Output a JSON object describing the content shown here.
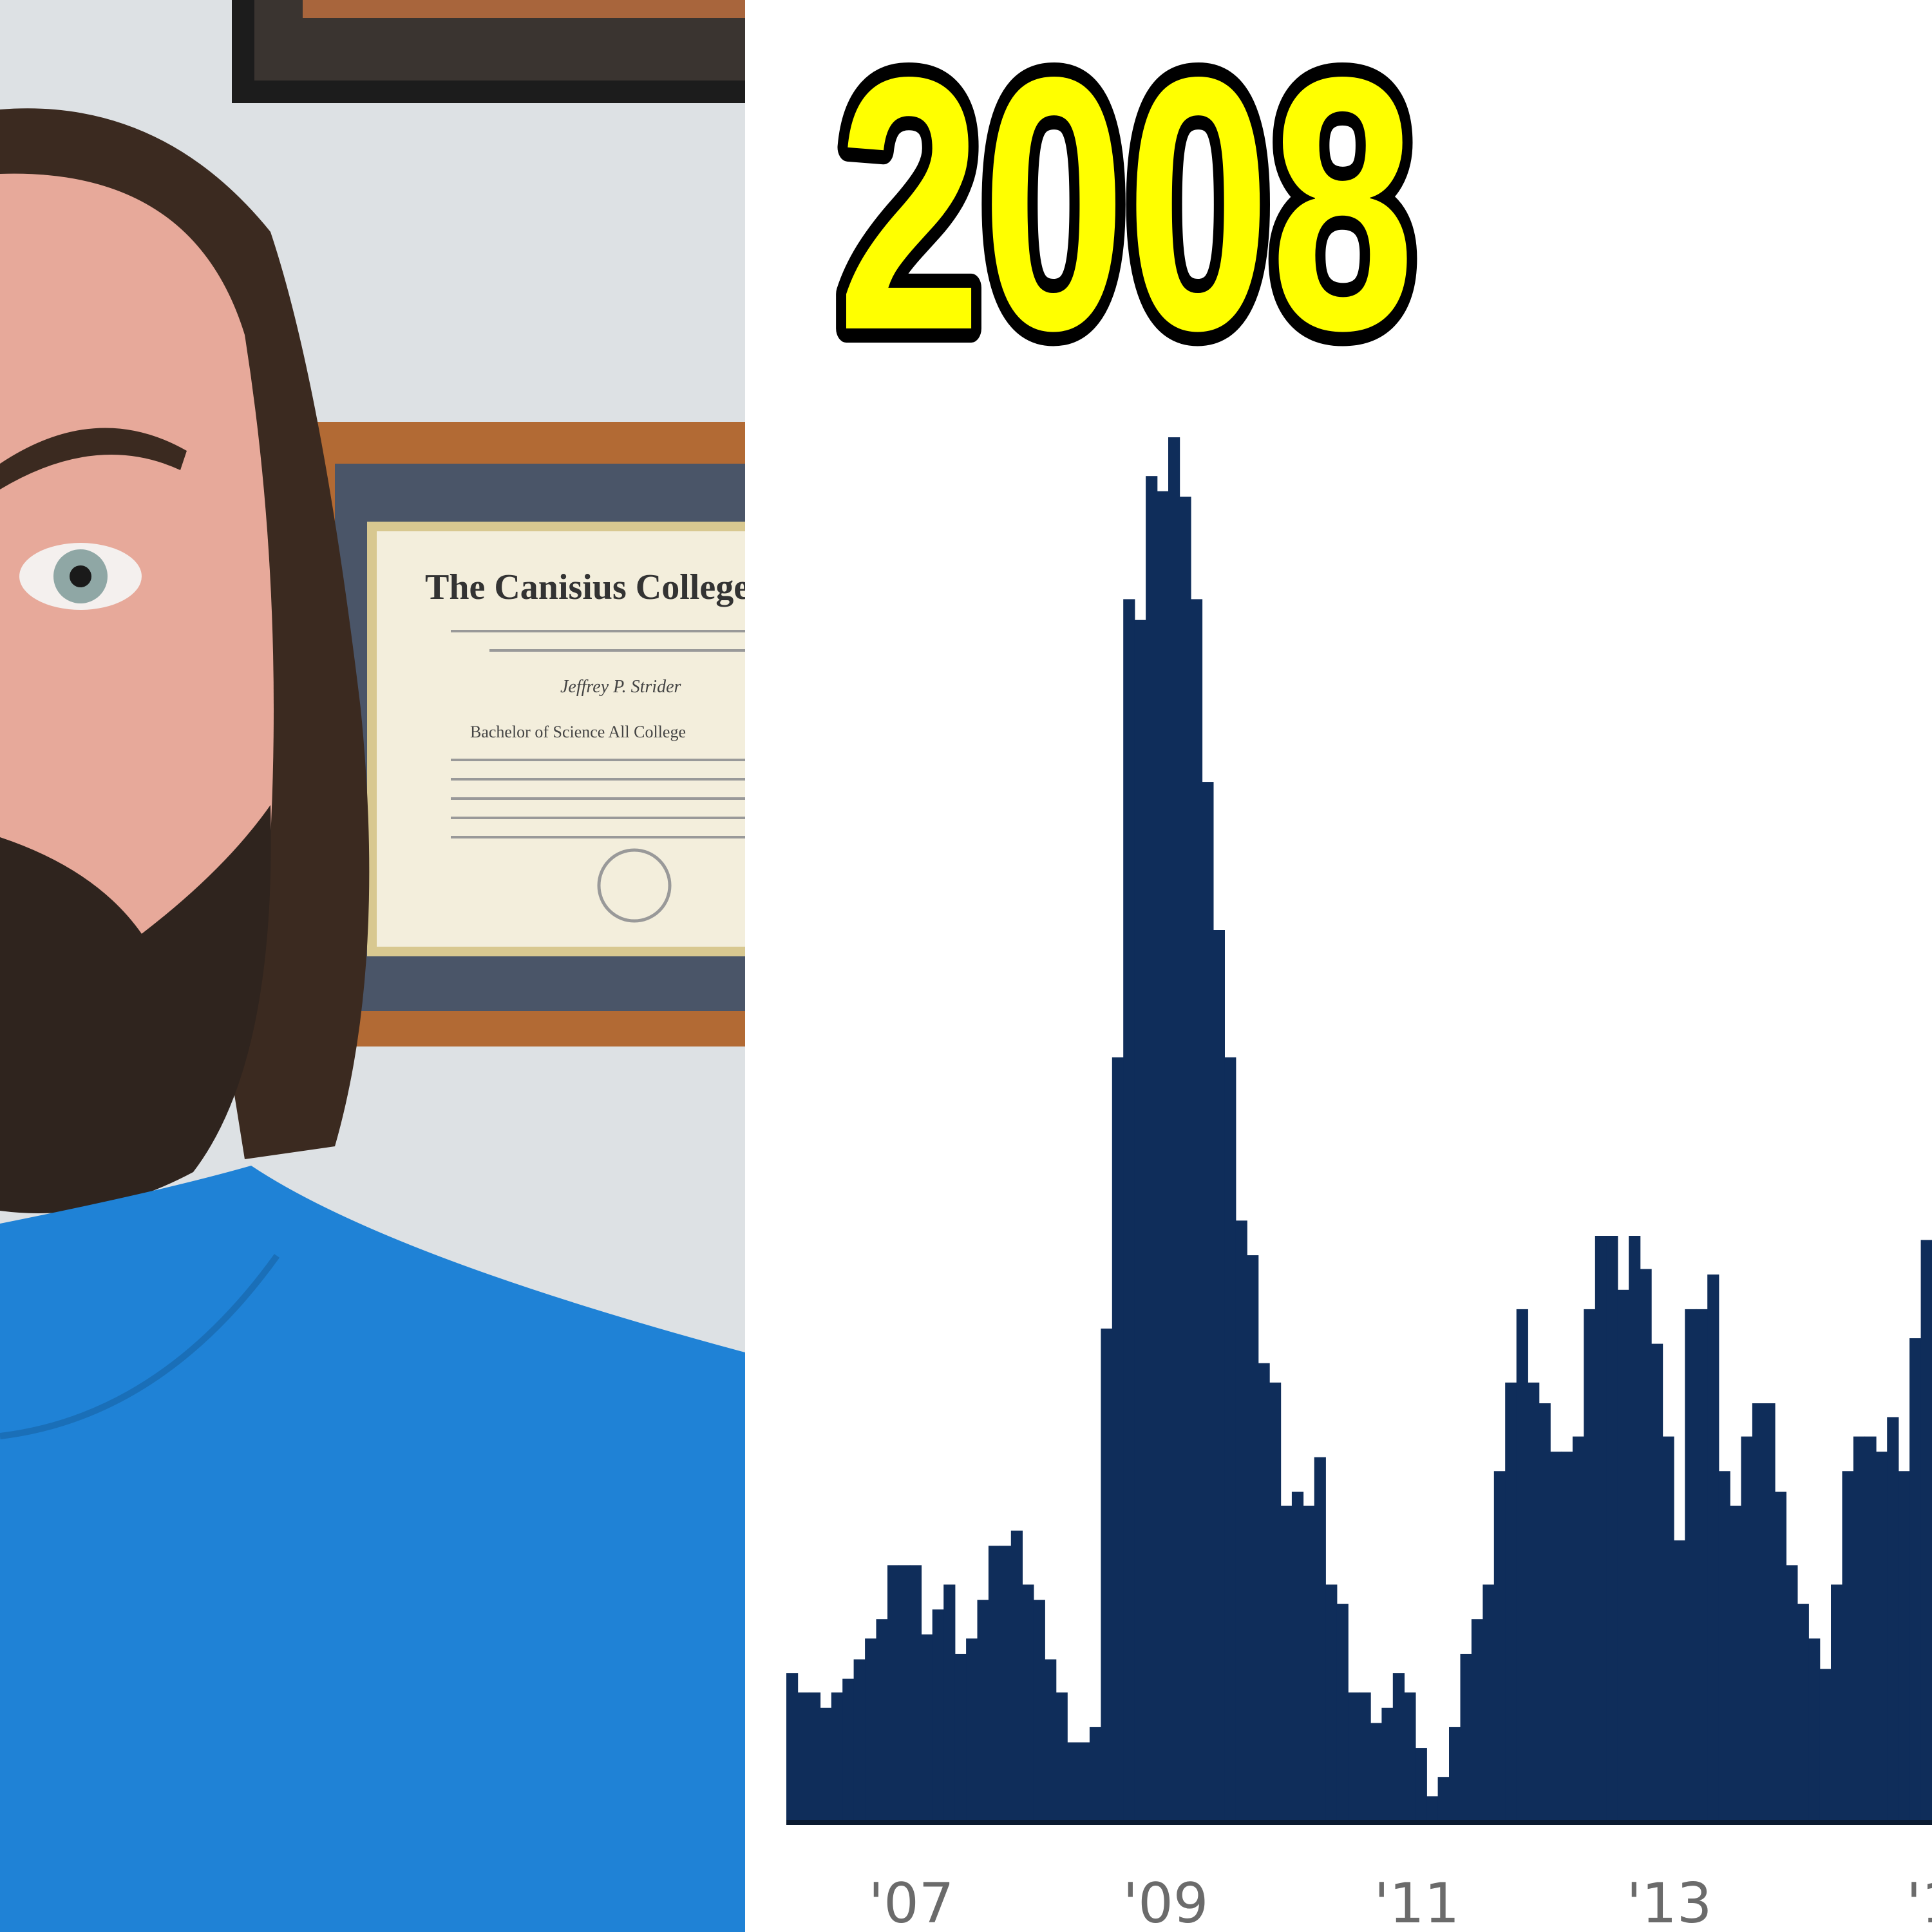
{
  "photo": {
    "diploma_heading": "The Canisius College of",
    "diploma_name": "Jeffrey P. Strider",
    "diploma_degree": "Bachelor of Science  All College"
  },
  "colors": {
    "bar": "#0f2d5a",
    "title_fill": "#ffff00",
    "title_stroke": "#000000",
    "shirt": "#1f82d6"
  },
  "chart_data": {
    "type": "bar",
    "title": "2008",
    "xlabel": "",
    "ylabel": "",
    "x_tick_labels": [
      "'07",
      "'09",
      "'11",
      "'13",
      "'1"
    ],
    "grid": false,
    "ylim": [
      0,
      100
    ],
    "values": [
      10.7,
      9.3,
      9.3,
      8.2,
      9.3,
      10.3,
      11.7,
      13.2,
      14.6,
      18.5,
      18.5,
      18.5,
      13.5,
      15.3,
      17.1,
      12.1,
      13.2,
      16.0,
      19.9,
      19.9,
      21.0,
      17.1,
      16.0,
      11.7,
      9.3,
      5.7,
      5.7,
      6.8,
      35.6,
      55.2,
      88.3,
      86.8,
      97.2,
      96.1,
      100,
      95.7,
      88.3,
      75.1,
      64.4,
      55.2,
      43.4,
      40.9,
      33.1,
      31.7,
      22.8,
      23.8,
      22.8,
      26.3,
      17.1,
      15.7,
      9.3,
      9.3,
      7.1,
      8.2,
      10.7,
      9.3,
      5.3,
      1.8,
      3.2,
      6.8,
      12.1,
      14.6,
      17.1,
      25.3,
      31.7,
      37.0,
      31.7,
      30.2,
      26.7,
      26.7,
      27.8,
      37.0,
      42.3,
      42.3,
      38.4,
      42.3,
      39.9,
      34.5,
      27.8,
      20.3,
      37.0,
      37.0,
      39.5,
      25.3,
      22.8,
      27.8,
      30.2,
      30.2,
      23.8,
      18.5,
      15.7,
      13.2,
      11.0,
      17.1,
      25.3,
      27.8,
      27.8,
      26.7,
      29.2,
      25.3,
      34.9,
      42.0
    ]
  }
}
